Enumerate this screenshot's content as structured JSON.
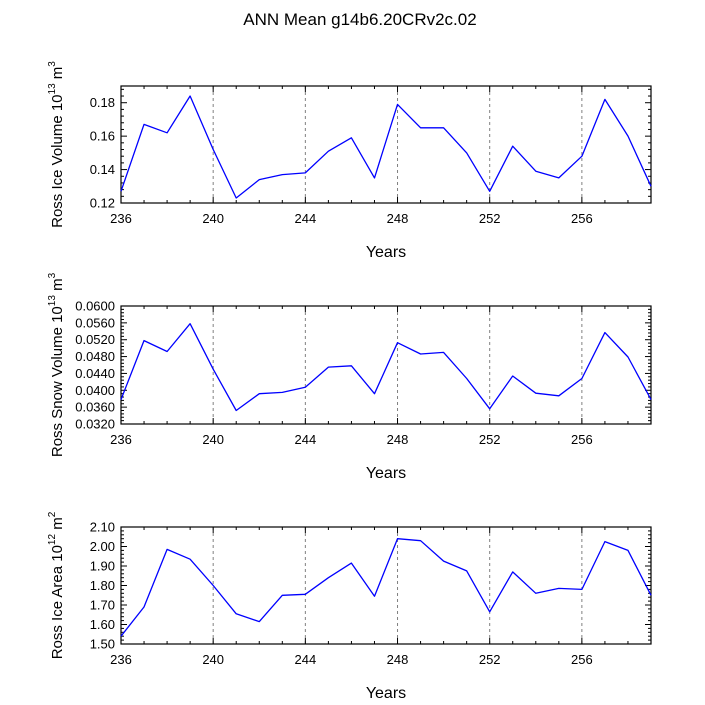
{
  "title": "ANN Mean g14b6.20CRv2c.02",
  "colors": {
    "line": "#0000ff",
    "axis": "#000000",
    "grid": "#808080"
  },
  "chart_data": [
    {
      "type": "line",
      "ylabel_main": "Ross Ice Volume 10",
      "ylabel_exp": "13",
      "ylabel_unit": " m",
      "ylabel_unit_exp": "3",
      "xlabel": "Years",
      "xlim": [
        236,
        259
      ],
      "ylim": [
        0.12,
        0.19
      ],
      "xticks": [
        "236",
        "240",
        "244",
        "248",
        "252",
        "256"
      ],
      "yticks": [
        "0.12",
        "0.14",
        "0.16",
        "0.18"
      ],
      "x": [
        236,
        237,
        238,
        239,
        240,
        241,
        242,
        243,
        244,
        245,
        246,
        247,
        248,
        249,
        250,
        251,
        252,
        253,
        254,
        255,
        256,
        257,
        258,
        259
      ],
      "values": [
        0.127,
        0.167,
        0.162,
        0.184,
        0.152,
        0.123,
        0.134,
        0.137,
        0.138,
        0.151,
        0.159,
        0.135,
        0.179,
        0.165,
        0.165,
        0.15,
        0.127,
        0.154,
        0.139,
        0.135,
        0.148,
        0.182,
        0.16,
        0.13
      ]
    },
    {
      "type": "line",
      "ylabel_main": "Ross Snow Volume 10",
      "ylabel_exp": "13",
      "ylabel_unit": " m",
      "ylabel_unit_exp": "3",
      "xlabel": "Years",
      "xlim": [
        236,
        259
      ],
      "ylim": [
        0.032,
        0.06
      ],
      "xticks": [
        "236",
        "240",
        "244",
        "248",
        "252",
        "256"
      ],
      "yticks": [
        "0.0320",
        "0.0360",
        "0.0400",
        "0.0440",
        "0.0480",
        "0.0520",
        "0.0560",
        "0.0600"
      ],
      "x": [
        236,
        237,
        238,
        239,
        240,
        241,
        242,
        243,
        244,
        245,
        246,
        247,
        248,
        249,
        250,
        251,
        252,
        253,
        254,
        255,
        256,
        257,
        258,
        259
      ],
      "values": [
        0.0378,
        0.0518,
        0.0492,
        0.0558,
        0.045,
        0.0352,
        0.0392,
        0.0395,
        0.0407,
        0.0455,
        0.0458,
        0.0392,
        0.0513,
        0.0486,
        0.049,
        0.0428,
        0.0356,
        0.0434,
        0.0393,
        0.0387,
        0.0428,
        0.0537,
        0.0479,
        0.0378
      ]
    },
    {
      "type": "line",
      "ylabel_main": "Ross Ice Area 10",
      "ylabel_exp": "12",
      "ylabel_unit": " m",
      "ylabel_unit_exp": "2",
      "xlabel": "Years",
      "xlim": [
        236,
        259
      ],
      "ylim": [
        1.5,
        2.1
      ],
      "xticks": [
        "236",
        "240",
        "244",
        "248",
        "252",
        "256"
      ],
      "yticks": [
        "1.50",
        "1.60",
        "1.70",
        "1.80",
        "1.90",
        "2.00",
        "2.10"
      ],
      "x": [
        236,
        237,
        238,
        239,
        240,
        241,
        242,
        243,
        244,
        245,
        246,
        247,
        248,
        249,
        250,
        251,
        252,
        253,
        254,
        255,
        256,
        257,
        258,
        259
      ],
      "values": [
        1.54,
        1.69,
        1.985,
        1.935,
        1.8,
        1.655,
        1.615,
        1.75,
        1.755,
        1.84,
        1.915,
        1.745,
        2.04,
        2.03,
        1.925,
        1.875,
        1.665,
        1.87,
        1.76,
        1.785,
        1.78,
        2.025,
        1.98,
        1.75
      ]
    }
  ]
}
